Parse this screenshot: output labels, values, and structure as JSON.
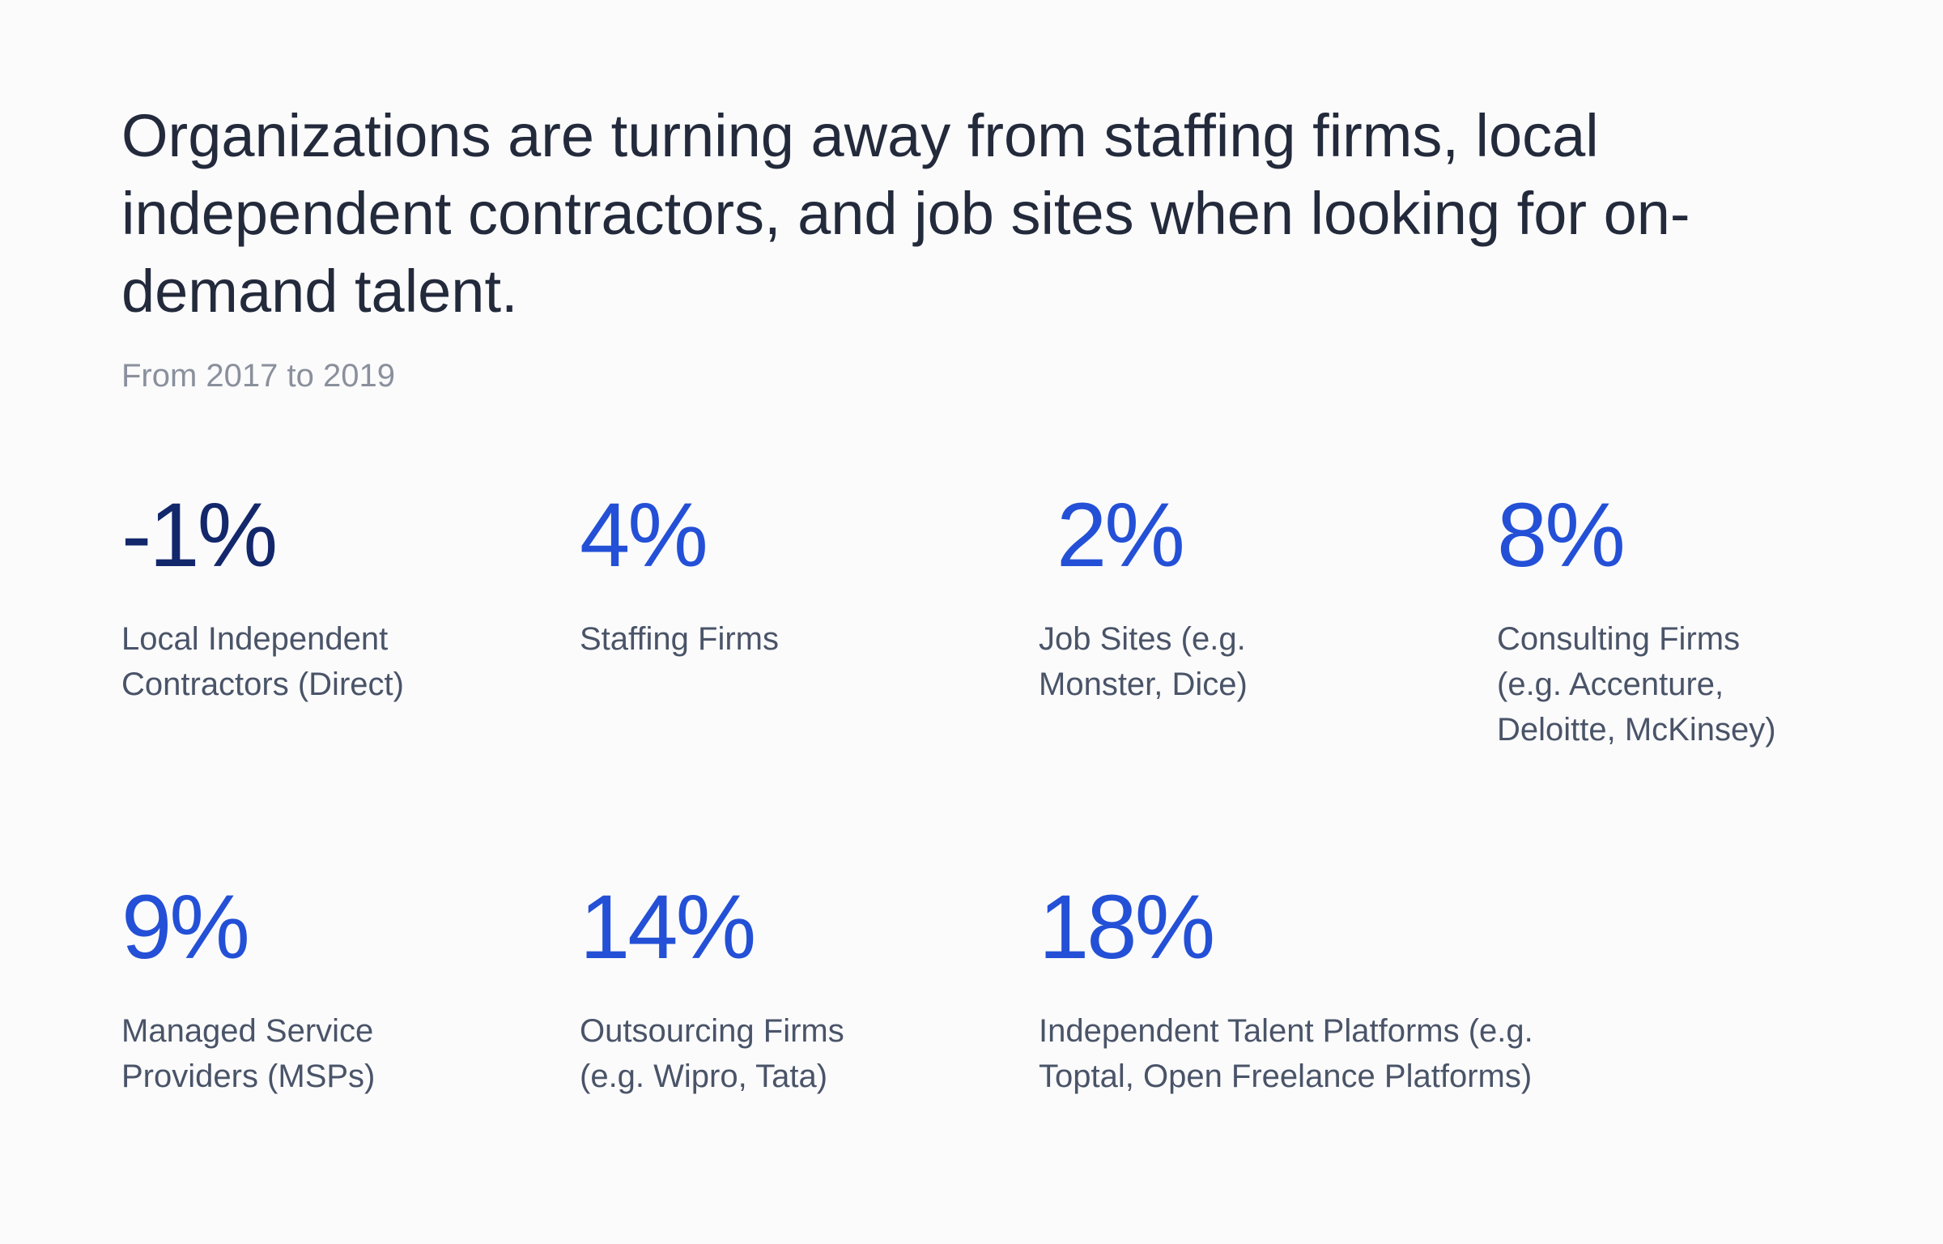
{
  "title": "Organizations are turning away from staffing firms, local independent contractors, and job sites when looking for on-demand talent.",
  "subtitle": "From 2017 to 2019",
  "colors": {
    "negative": "#13276b",
    "positive": "#2350d6",
    "label": "#4a5468",
    "title": "#232a3b",
    "subtitle": "#8a909c"
  },
  "stats": [
    {
      "value": "-1%",
      "label_lines": [
        "Local Independent",
        "Contractors (Direct)"
      ]
    },
    {
      "value": "4%",
      "label_lines": [
        "Staffing Firms"
      ]
    },
    {
      "value": "2%",
      "label_lines": [
        "Job Sites (e.g.",
        "Monster, Dice)"
      ]
    },
    {
      "value": "8%",
      "label_lines": [
        "Consulting Firms",
        "(e.g. Accenture,",
        "Deloitte, McKinsey)"
      ]
    },
    {
      "value": "9%",
      "label_lines": [
        "Managed Service",
        "Providers (MSPs)"
      ]
    },
    {
      "value": "14%",
      "label_lines": [
        "Outsourcing Firms",
        "(e.g. Wipro, Tata)"
      ]
    },
    {
      "value": "18%",
      "label_lines": [
        "Independent Talent Platforms (e.g.",
        "Toptal, Open Freelance Platforms)"
      ]
    }
  ]
}
